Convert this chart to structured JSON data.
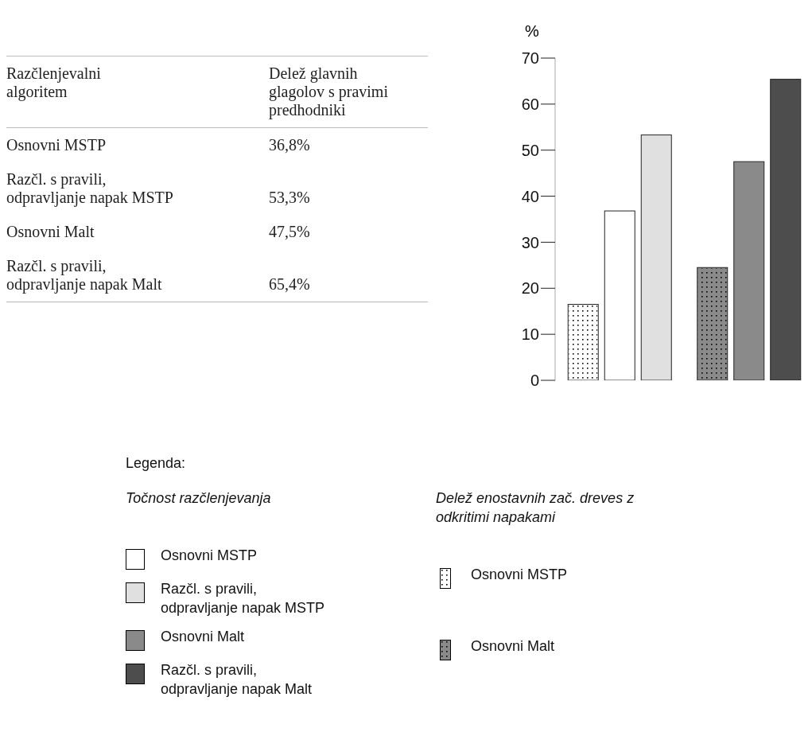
{
  "chart_data": {
    "type": "bar",
    "categories": [
      null,
      null
    ],
    "ylabel": "%",
    "ylim": [
      0,
      70
    ],
    "yticks": [
      0,
      10,
      20,
      30,
      40,
      50,
      60,
      70
    ],
    "legend_title": "Legenda:",
    "annotations": [
      "Razčlenjevalni algoritem",
      "Delež glavnih glagolov s pravimi predhodniki",
      "Točnost razčlenjevanja",
      "Delež enostavnih zač. dreves z odkritimi napakami",
      "Osnovni MSTP",
      "Osnovni MSTP",
      "Razčl. s pravili, odpravljanje napak MSTP",
      "Osnovni Malt",
      "Osnovni Malt",
      "Razčl. s pravili, odpravljanje napak Malt",
      "36,8%",
      "53,3%",
      "47,5%",
      "65,4%"
    ],
    "series": [
      {
        "colors": [
          "#ffffff",
          "#8a8a8a"
        ],
        "line_style": "dotted",
        "values": [
          16.5,
          24.5
        ]
      },
      {
        "colors": [
          "#ffffff",
          "#8a8a8a"
        ],
        "values": [
          36.8,
          47.5
        ]
      },
      {
        "colors": [
          "#e0e0e0",
          "#4d4d4d"
        ],
        "values": [
          53.3,
          65.4
        ]
      }
    ]
  }
}
